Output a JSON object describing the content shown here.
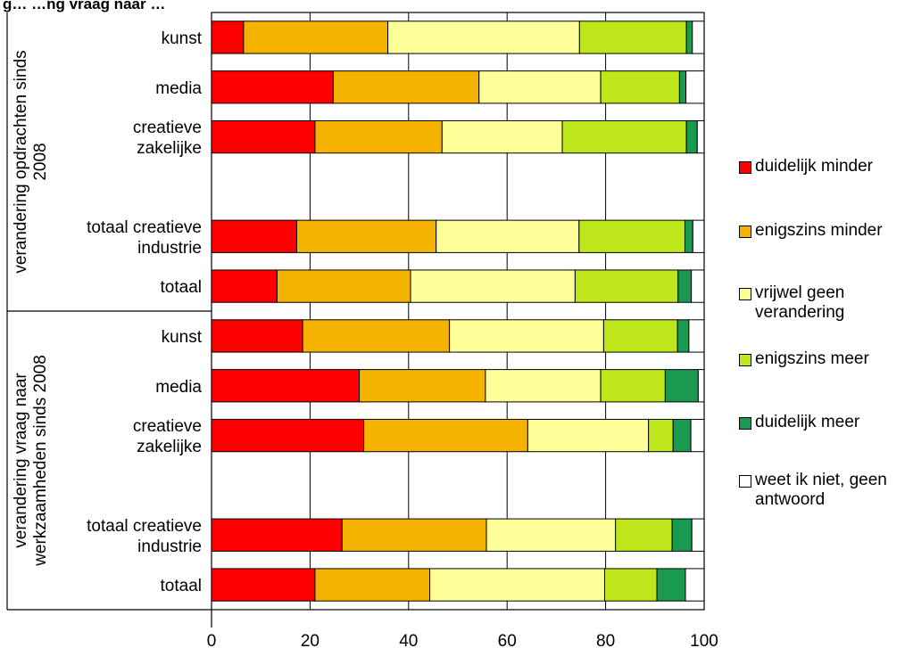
{
  "chart_data": {
    "type": "bar",
    "orientation": "horizontal",
    "stacked": true,
    "title": "g…                       …ng vraag naar   …                                      ",
    "xlim": [
      0,
      100
    ],
    "xticks": [
      0,
      20,
      40,
      60,
      80,
      100
    ],
    "grid": true,
    "legend_position": "right",
    "groups": [
      {
        "label": "verandering opdrachten sinds 2008",
        "categories": [
          "kunst",
          "media",
          "creatieve zakelijke",
          "",
          "totaal creatieve industrie",
          "totaal"
        ]
      },
      {
        "label": "verandering vraag naar werkzaamheden sinds 2008",
        "categories": [
          "kunst",
          "media",
          "creatieve zakelijke",
          "",
          "totaal creatieve industrie",
          "totaal"
        ]
      }
    ],
    "series": [
      {
        "name": "duidelijk minder",
        "color": "#ff0000",
        "values": [
          6.5,
          24.7,
          21.0,
          null,
          17.3,
          13.3,
          18.5,
          30.0,
          30.9,
          null,
          26.5,
          21.0
        ]
      },
      {
        "name": "enigszins minder",
        "color": "#f5b300",
        "values": [
          29.3,
          29.6,
          25.8,
          null,
          28.3,
          27.1,
          29.8,
          25.6,
          33.3,
          null,
          29.3,
          23.3
        ]
      },
      {
        "name": "vrijwel geen verandering",
        "color": "#ffff99",
        "values": [
          38.9,
          24.7,
          24.4,
          null,
          29.0,
          33.4,
          31.3,
          23.4,
          24.5,
          null,
          26.2,
          35.5
        ]
      },
      {
        "name": "enigszins meer",
        "color": "#bfe61a",
        "values": [
          21.7,
          16.0,
          25.2,
          null,
          21.5,
          20.9,
          15.0,
          13.1,
          5.0,
          null,
          11.5,
          10.6
        ]
      },
      {
        "name": "duidelijk meer",
        "color": "#1a9950",
        "values": [
          1.2,
          1.3,
          2.2,
          null,
          1.6,
          2.7,
          2.3,
          6.7,
          3.6,
          null,
          4.0,
          5.8
        ]
      },
      {
        "name": "weet ik niet, geen antwoord",
        "color": "#ffffff",
        "values": [
          2.4,
          3.7,
          1.4,
          null,
          2.3,
          2.6,
          3.1,
          1.2,
          2.7,
          null,
          2.5,
          3.8
        ]
      }
    ]
  }
}
